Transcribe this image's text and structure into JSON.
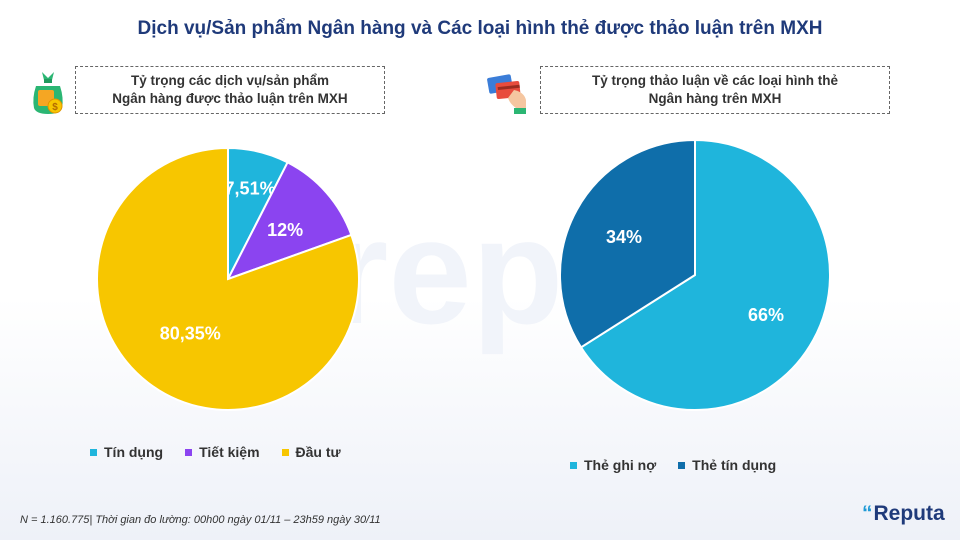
{
  "title": "Dịch vụ/Sản phẩm Ngân hàng và Các loại hình thẻ được thảo luận trên MXH",
  "left": {
    "box_line1": "Tỷ trọng các dịch vụ/sản phẩm",
    "box_line2": "Ngân hàng được thảo luận trên MXH",
    "icon": "money-bag-icon"
  },
  "right": {
    "box_line1": "Tỷ trọng thảo luận về các loại hình thẻ",
    "box_line2": "Ngân hàng trên MXH",
    "icon": "credit-card-hand-icon"
  },
  "chart_data": [
    {
      "type": "pie",
      "title": "Tỷ trọng các dịch vụ/sản phẩm Ngân hàng được thảo luận trên MXH",
      "categories": [
        "Tín dụng",
        "Tiết kiệm",
        "Đầu tư"
      ],
      "values": [
        7.51,
        12,
        80.35
      ],
      "labels": [
        "7,51%",
        "12%",
        "80,35%"
      ],
      "colors": [
        "#1fb5dc",
        "#8b44f0",
        "#f7c600"
      ],
      "legend": "bottom"
    },
    {
      "type": "pie",
      "title": "Tỷ trọng thảo luận về các loại hình thẻ Ngân hàng trên MXH",
      "categories": [
        "Thẻ ghi nợ",
        "Thẻ tín dụng"
      ],
      "values": [
        66,
        34
      ],
      "labels": [
        "66%",
        "34%"
      ],
      "colors": [
        "#1fb5dc",
        "#0f6eaa"
      ],
      "legend": "bottom"
    }
  ],
  "footnote": "N = 1.160.775| Thời gian đo lường: 00h00 ngày 01/11 – 23h59 ngày 30/11",
  "watermark": "repu",
  "logo": {
    "mark": "“",
    "text": "Reputa"
  }
}
